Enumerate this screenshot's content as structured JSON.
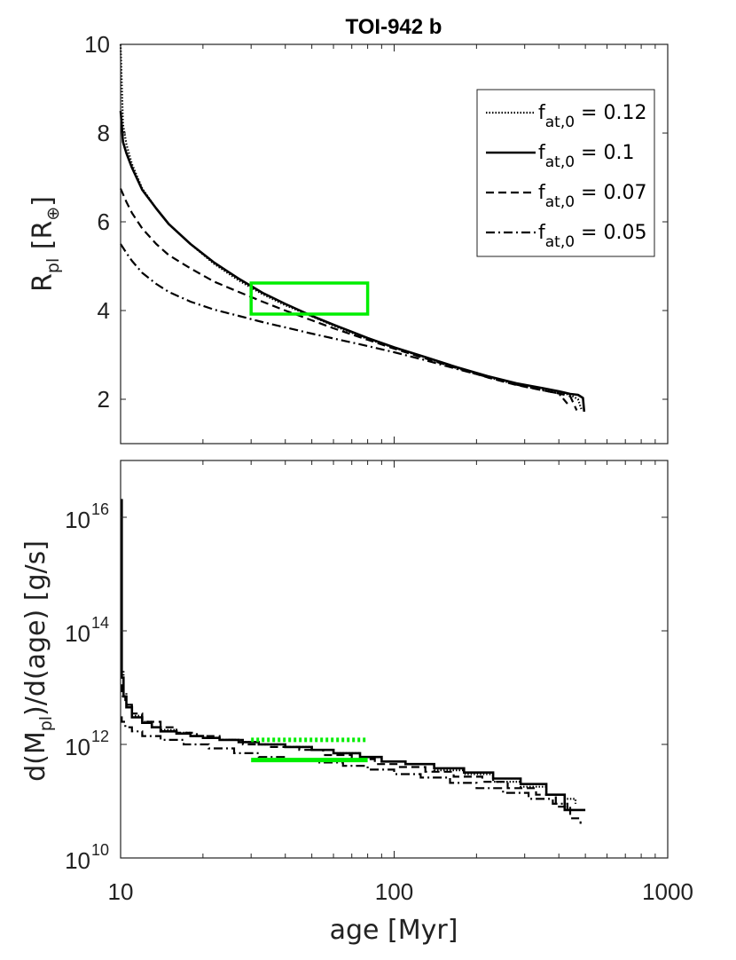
{
  "chart_data": [
    {
      "type": "line",
      "title": "TOI-942 b",
      "xlabel": "",
      "ylabel": "R_pl [R_⊕]",
      "xscale": "log",
      "xlim": [
        10,
        1000
      ],
      "ylim": [
        1,
        10
      ],
      "ytick_labels": [
        "2",
        "4",
        "6",
        "8",
        "10"
      ],
      "yticks": [
        2,
        4,
        6,
        8,
        10
      ],
      "legend": {
        "location": "top-right",
        "entries": [
          {
            "base": "f",
            "sub": "at,0",
            "value": " = 0.12",
            "style": "dotted"
          },
          {
            "base": "f",
            "sub": "at,0",
            "value": " = 0.1",
            "style": "solid"
          },
          {
            "base": "f",
            "sub": "at,0",
            "value": " = 0.07",
            "style": "dashed"
          },
          {
            "base": "f",
            "sub": "at,0",
            "value": " = 0.05",
            "style": "dashdot"
          }
        ]
      },
      "series": [
        {
          "name": "f_at,0 = 0.12",
          "style": "dotted",
          "x": [
            10,
            10.2,
            10.5,
            11,
            12,
            13.5,
            15,
            18,
            22,
            27,
            33,
            40,
            50,
            60,
            70,
            80,
            100,
            130,
            170,
            220,
            280,
            350,
            400,
            440,
            470,
            485
          ],
          "y": [
            10.0,
            8.2,
            7.75,
            7.3,
            6.75,
            6.3,
            5.95,
            5.5,
            5.05,
            4.68,
            4.37,
            4.12,
            3.87,
            3.66,
            3.5,
            3.36,
            3.16,
            2.94,
            2.7,
            2.5,
            2.33,
            2.22,
            2.15,
            2.1,
            2.0,
            1.75
          ]
        },
        {
          "name": "f_at,0 = 0.1",
          "style": "solid",
          "x": [
            10,
            10.2,
            10.5,
            11,
            12,
            13.5,
            15,
            18,
            22,
            27,
            33,
            40,
            50,
            60,
            70,
            80,
            100,
            130,
            170,
            220,
            280,
            350,
            400,
            440,
            470,
            490,
            495
          ],
          "y": [
            8.5,
            7.8,
            7.55,
            7.22,
            6.72,
            6.3,
            5.95,
            5.5,
            5.08,
            4.72,
            4.4,
            4.15,
            3.88,
            3.68,
            3.52,
            3.38,
            3.17,
            2.95,
            2.72,
            2.52,
            2.36,
            2.25,
            2.18,
            2.12,
            2.1,
            2.03,
            1.72
          ]
        },
        {
          "name": "f_at,0 = 0.07",
          "style": "dashed",
          "x": [
            10,
            10.5,
            11,
            12,
            13.5,
            15,
            18,
            22,
            27,
            33,
            40,
            50,
            60,
            70,
            80,
            100,
            130,
            170,
            220,
            280,
            350,
            400,
            440,
            465
          ],
          "y": [
            6.75,
            6.45,
            6.2,
            5.85,
            5.5,
            5.25,
            4.95,
            4.65,
            4.42,
            4.2,
            4.0,
            3.78,
            3.6,
            3.46,
            3.34,
            3.14,
            2.92,
            2.7,
            2.49,
            2.32,
            2.2,
            2.13,
            2.07,
            1.75
          ]
        },
        {
          "name": "f_at,0 = 0.05",
          "style": "dashdot",
          "x": [
            10,
            10.5,
            11,
            12,
            13.5,
            15,
            18,
            22,
            27,
            33,
            40,
            50,
            60,
            70,
            80,
            100,
            130,
            170,
            220,
            280,
            350,
            400,
            430
          ],
          "y": [
            5.5,
            5.3,
            5.12,
            4.85,
            4.6,
            4.42,
            4.2,
            4.02,
            3.88,
            3.74,
            3.62,
            3.48,
            3.37,
            3.28,
            3.2,
            3.06,
            2.88,
            2.68,
            2.5,
            2.33,
            2.2,
            2.13,
            1.9
          ]
        }
      ],
      "observation_box": {
        "x": [
          30,
          80
        ],
        "y": [
          3.92,
          4.62
        ],
        "color": "#00ee00"
      }
    },
    {
      "type": "line",
      "title": "",
      "xlabel": "age [Myr]",
      "ylabel": "d(M_pl)/d(age) [g/s]",
      "xscale": "log",
      "yscale": "log",
      "xlim": [
        10,
        1000
      ],
      "ylim": [
        10000000000.0,
        1e+17
      ],
      "xtick_labels": [
        "10",
        "100",
        "1000"
      ],
      "xticks": [
        10,
        100,
        1000
      ],
      "ytick_labels": [
        {
          "base": "10",
          "exp": "10"
        },
        {
          "base": "10",
          "exp": "12"
        },
        {
          "base": "10",
          "exp": "14"
        },
        {
          "base": "10",
          "exp": "16"
        }
      ],
      "yticks": [
        10000000000.0,
        1000000000000.0,
        100000000000000.0,
        1e+16
      ],
      "series": [
        {
          "name": "f_at,0 = 0.12",
          "style": "dotted",
          "step": true,
          "x": [
            10,
            10.1,
            10.25,
            10.5,
            11,
            12,
            13,
            14,
            16,
            18,
            20,
            23,
            27,
            32,
            40,
            50,
            60,
            75,
            90,
            110,
            140,
            180,
            230,
            290,
            360,
            420,
            460
          ],
          "y": [
            2e+16,
            20000000000000.0,
            8000000000000.0,
            5000000000000.0,
            3200000000000.0,
            2500000000000.0,
            2000000000000.0,
            1800000000000.0,
            1600000000000.0,
            1400000000000.0,
            1300000000000.0,
            1200000000000.0,
            1100000000000.0,
            1000000000000.0,
            900000000000.0,
            800000000000.0,
            700000000000.0,
            600000000000.0,
            500000000000.0,
            450000000000.0,
            350000000000.0,
            300000000000.0,
            220000000000.0,
            180000000000.0,
            130000000000.0,
            110000000000.0,
            90000000000.0
          ]
        },
        {
          "name": "f_at,0 = 0.1",
          "style": "solid",
          "step": true,
          "x": [
            10,
            10.1,
            10.25,
            10.5,
            11,
            12,
            13,
            14,
            16,
            18,
            20,
            23,
            27,
            32,
            40,
            50,
            60,
            75,
            90,
            110,
            140,
            180,
            230,
            290,
            360,
            420,
            500
          ],
          "y": [
            2e+16,
            15000000000000.0,
            7000000000000.0,
            4500000000000.0,
            3000000000000.0,
            2400000000000.0,
            2000000000000.0,
            1700000000000.0,
            1550000000000.0,
            1400000000000.0,
            1300000000000.0,
            1200000000000.0,
            1100000000000.0,
            1000000000000.0,
            900000000000.0,
            800000000000.0,
            700000000000.0,
            600000000000.0,
            500000000000.0,
            450000000000.0,
            380000000000.0,
            320000000000.0,
            250000000000.0,
            200000000000.0,
            130000000000.0,
            70000000000.0,
            70000000000.0
          ]
        },
        {
          "name": "f_at,0 = 0.07",
          "style": "dashed",
          "step": true,
          "x": [
            10,
            10.1,
            10.4,
            11,
            12,
            14,
            16,
            19,
            23,
            28,
            35,
            45,
            55,
            70,
            85,
            105,
            130,
            165,
            210,
            260,
            330,
            390,
            440,
            480
          ],
          "y": [
            11000000000000.0,
            7000000000000.0,
            5000000000000.0,
            3500000000000.0,
            2500000000000.0,
            2000000000000.0,
            1600000000000.0,
            1400000000000.0,
            1200000000000.0,
            1000000000000.0,
            900000000000.0,
            800000000000.0,
            650000000000.0,
            550000000000.0,
            450000000000.0,
            400000000000.0,
            330000000000.0,
            270000000000.0,
            220000000000.0,
            170000000000.0,
            130000000000.0,
            80000000000.0,
            50000000000.0,
            40000000000.0
          ]
        },
        {
          "name": "f_at,0 = 0.05",
          "style": "dashdot",
          "step": true,
          "x": [
            10,
            10.1,
            10.4,
            11,
            12,
            14,
            17,
            21,
            26,
            32,
            40,
            52,
            65,
            80,
            100,
            125,
            160,
            200,
            250,
            310,
            380,
            430
          ],
          "y": [
            3000000000000.0,
            2500000000000.0,
            2000000000000.0,
            1700000000000.0,
            1400000000000.0,
            1200000000000.0,
            1000000000000.0,
            850000000000.0,
            700000000000.0,
            600000000000.0,
            550000000000.0,
            480000000000.0,
            420000000000.0,
            360000000000.0,
            300000000000.0,
            260000000000.0,
            210000000000.0,
            170000000000.0,
            140000000000.0,
            110000000000.0,
            90000000000.0,
            70000000000.0
          ]
        }
      ],
      "observation_lines": [
        {
          "x": [
            30,
            80
          ],
          "y": 1200000000000.0,
          "style": "dotted",
          "color": "#00ee00"
        },
        {
          "x": [
            30,
            80
          ],
          "y": 530000000000.0,
          "style": "solid",
          "color": "#00ee00"
        }
      ]
    }
  ]
}
